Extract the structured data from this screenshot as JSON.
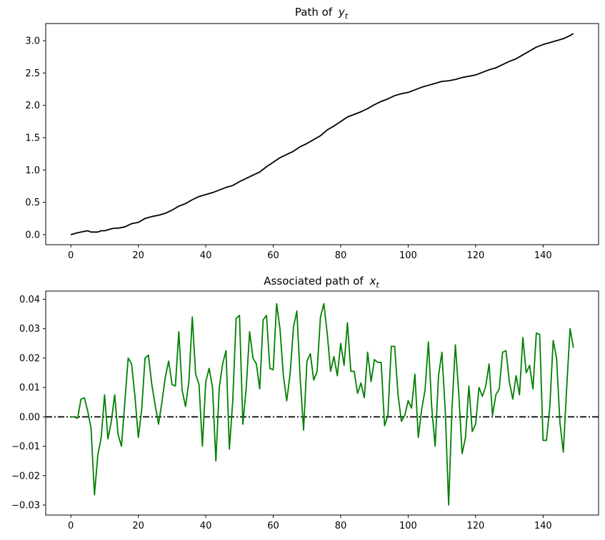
{
  "chart_data": [
    {
      "type": "line",
      "title": "Path of",
      "title_symbol": "y",
      "title_subscript": "t",
      "xlabel": "",
      "ylabel": "",
      "xlim": [
        -7.45,
        156.45
      ],
      "ylim": [
        -0.155,
        3.265
      ],
      "xticks": [
        0,
        20,
        40,
        60,
        80,
        100,
        120,
        140
      ],
      "yticks": [
        0.0,
        0.5,
        1.0,
        1.5,
        2.0,
        2.5,
        3.0
      ],
      "ytick_decimals": 1,
      "grid": false,
      "series": [
        {
          "color": "#000000",
          "x": [
            0,
            2,
            4,
            5,
            6,
            8,
            9,
            10,
            12,
            13,
            14,
            16,
            18,
            19,
            20,
            22,
            24,
            26,
            28,
            30,
            32,
            34,
            36,
            38,
            40,
            42,
            44,
            46,
            48,
            50,
            52,
            54,
            56,
            58,
            60,
            62,
            64,
            66,
            68,
            70,
            72,
            74,
            76,
            78,
            80,
            82,
            84,
            86,
            88,
            90,
            92,
            94,
            96,
            98,
            100,
            102,
            104,
            106,
            108,
            110,
            112,
            114,
            116,
            118,
            120,
            122,
            124,
            126,
            128,
            130,
            132,
            134,
            136,
            138,
            140,
            142,
            144,
            146,
            148,
            149
          ],
          "y": [
            0.0,
            0.03,
            0.05,
            0.06,
            0.04,
            0.04,
            0.06,
            0.06,
            0.09,
            0.1,
            0.1,
            0.12,
            0.17,
            0.18,
            0.19,
            0.25,
            0.28,
            0.3,
            0.33,
            0.38,
            0.44,
            0.48,
            0.54,
            0.59,
            0.62,
            0.65,
            0.69,
            0.73,
            0.76,
            0.82,
            0.87,
            0.92,
            0.97,
            1.05,
            1.12,
            1.19,
            1.24,
            1.29,
            1.36,
            1.41,
            1.47,
            1.53,
            1.62,
            1.68,
            1.75,
            1.82,
            1.86,
            1.9,
            1.95,
            2.01,
            2.06,
            2.1,
            2.15,
            2.18,
            2.2,
            2.24,
            2.28,
            2.31,
            2.34,
            2.37,
            2.38,
            2.4,
            2.43,
            2.45,
            2.47,
            2.51,
            2.55,
            2.58,
            2.63,
            2.68,
            2.72,
            2.78,
            2.84,
            2.9,
            2.94,
            2.97,
            3.0,
            3.03,
            3.08,
            3.11
          ]
        }
      ]
    },
    {
      "type": "line",
      "title": "Associated path of",
      "title_symbol": "x",
      "title_subscript": "t",
      "xlabel": "",
      "ylabel": "",
      "xlim": [
        -7.45,
        156.45
      ],
      "ylim": [
        -0.0334,
        0.0428
      ],
      "xticks": [
        0,
        20,
        40,
        60,
        80,
        100,
        120,
        140
      ],
      "yticks": [
        -0.03,
        -0.02,
        -0.01,
        0.0,
        0.01,
        0.02,
        0.03,
        0.04
      ],
      "ytick_decimals": 2,
      "grid": false,
      "reference_line": {
        "y": 0.0,
        "color": "#000000",
        "style": "dash-dot"
      },
      "series": [
        {
          "color": "#008000",
          "x": [
            0,
            1,
            2,
            3,
            4,
            5,
            6,
            7,
            8,
            9,
            10,
            11,
            12,
            13,
            14,
            15,
            16,
            17,
            18,
            19,
            20,
            21,
            22,
            23,
            24,
            25,
            26,
            27,
            28,
            29,
            30,
            31,
            32,
            33,
            34,
            35,
            36,
            37,
            38,
            39,
            40,
            41,
            42,
            43,
            44,
            45,
            46,
            47,
            48,
            49,
            50,
            51,
            52,
            53,
            54,
            55,
            56,
            57,
            58,
            59,
            60,
            61,
            62,
            63,
            64,
            65,
            66,
            67,
            68,
            69,
            70,
            71,
            72,
            73,
            74,
            75,
            76,
            77,
            78,
            79,
            80,
            81,
            82,
            83,
            84,
            85,
            86,
            87,
            88,
            89,
            90,
            91,
            92,
            93,
            94,
            95,
            96,
            97,
            98,
            99,
            100,
            101,
            102,
            103,
            104,
            105,
            106,
            107,
            108,
            109,
            110,
            111,
            112,
            113,
            114,
            115,
            116,
            117,
            118,
            119,
            120,
            121,
            122,
            123,
            124,
            125,
            126,
            127,
            128,
            129,
            130,
            131,
            132,
            133,
            134,
            135,
            136,
            137,
            138,
            139,
            140,
            141,
            142,
            143,
            144,
            145,
            146,
            147,
            148,
            149
          ],
          "y": [
            0.0,
            0.0,
            -0.0005,
            0.006,
            0.0065,
            0.002,
            -0.004,
            -0.0265,
            -0.013,
            -0.007,
            0.0075,
            -0.0075,
            -0.0015,
            0.0075,
            -0.006,
            -0.01,
            0.005,
            0.02,
            0.018,
            0.007,
            -0.007,
            0.0025,
            0.02,
            0.021,
            0.011,
            0.004,
            -0.0025,
            0.005,
            0.0135,
            0.019,
            0.011,
            0.0105,
            0.029,
            0.009,
            0.0035,
            0.012,
            0.034,
            0.0145,
            0.011,
            -0.01,
            0.012,
            0.0165,
            0.01,
            -0.015,
            0.01,
            0.018,
            0.0225,
            -0.011,
            0.0055,
            0.0335,
            0.0345,
            -0.0025,
            0.01,
            0.029,
            0.02,
            0.018,
            0.0095,
            0.033,
            0.0345,
            0.0165,
            0.016,
            0.0385,
            0.03,
            0.014,
            0.0055,
            0.0145,
            0.0305,
            0.036,
            0.013,
            -0.0045,
            0.019,
            0.0215,
            0.0125,
            0.0155,
            0.034,
            0.0385,
            0.0285,
            0.0155,
            0.0205,
            0.014,
            0.025,
            0.0175,
            0.032,
            0.0155,
            0.0155,
            0.008,
            0.0115,
            0.0065,
            0.022,
            0.012,
            0.0195,
            0.0185,
            0.0185,
            -0.003,
            0.0005,
            0.024,
            0.024,
            0.0075,
            -0.0015,
            0.0005,
            0.0055,
            0.003,
            0.0145,
            -0.007,
            0.0025,
            0.009,
            0.0255,
            0.003,
            -0.01,
            0.014,
            0.022,
            0.002,
            -0.03,
            0.003,
            0.0245,
            0.008,
            -0.0125,
            -0.007,
            0.0105,
            -0.005,
            -0.0025,
            0.01,
            0.007,
            0.0105,
            0.018,
            0.0005,
            0.0075,
            0.0095,
            0.022,
            0.0225,
            0.012,
            0.006,
            0.014,
            0.0075,
            0.027,
            0.015,
            0.0175,
            0.0095,
            0.0285,
            0.028,
            -0.008,
            -0.008,
            0.0035,
            0.026,
            0.02,
            -0.002,
            -0.012,
            0.01,
            0.03,
            0.0235
          ]
        }
      ]
    }
  ]
}
